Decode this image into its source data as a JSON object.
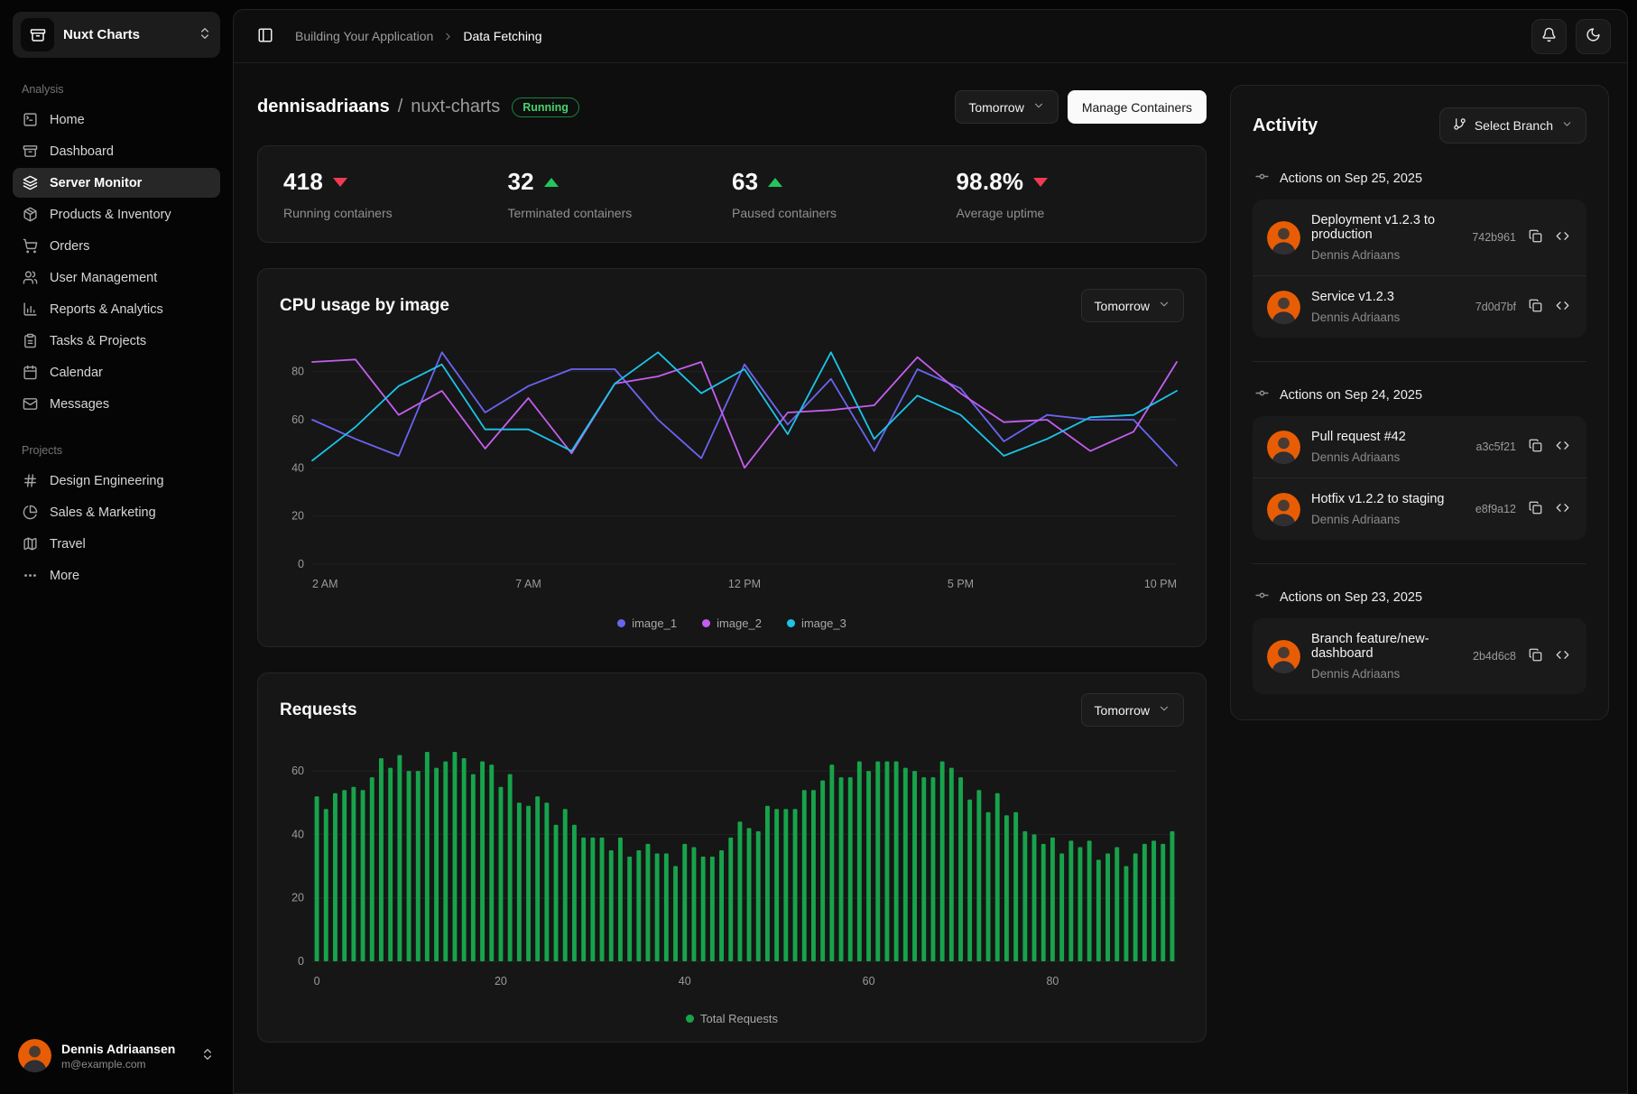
{
  "sidebar": {
    "team": {
      "name": "Nuxt Charts"
    },
    "sections": [
      {
        "label": "Analysis",
        "items": [
          {
            "label": "Home",
            "icon": "terminal-square",
            "active": false
          },
          {
            "label": "Dashboard",
            "icon": "archive",
            "active": false
          },
          {
            "label": "Server Monitor",
            "icon": "layers",
            "active": true
          },
          {
            "label": "Products & Inventory",
            "icon": "package",
            "active": false
          },
          {
            "label": "Orders",
            "icon": "shopping-cart",
            "active": false
          },
          {
            "label": "User Management",
            "icon": "users",
            "active": false
          },
          {
            "label": "Reports & Analytics",
            "icon": "bar-chart",
            "active": false
          },
          {
            "label": "Tasks & Projects",
            "icon": "clipboard",
            "active": false
          },
          {
            "label": "Calendar",
            "icon": "calendar",
            "active": false
          },
          {
            "label": "Messages",
            "icon": "mail",
            "active": false
          }
        ]
      },
      {
        "label": "Projects",
        "items": [
          {
            "label": "Design Engineering",
            "icon": "hash",
            "active": false
          },
          {
            "label": "Sales & Marketing",
            "icon": "pie-chart",
            "active": false
          },
          {
            "label": "Travel",
            "icon": "map",
            "active": false
          },
          {
            "label": "More",
            "icon": "ellipsis",
            "active": false
          }
        ]
      }
    ],
    "user": {
      "name": "Dennis Adriaansen",
      "email": "m@example.com"
    }
  },
  "topbar": {
    "breadcrumb": [
      "Building Your Application",
      "Data Fetching"
    ]
  },
  "header": {
    "owner": "dennisadriaans",
    "separator": "/",
    "repo": "nuxt-charts",
    "status": "Running",
    "period_label": "Tomorrow",
    "manage_label": "Manage Containers"
  },
  "stats": [
    {
      "value": "418",
      "trend": "down",
      "label": "Running containers"
    },
    {
      "value": "32",
      "trend": "up",
      "label": "Terminated containers"
    },
    {
      "value": "63",
      "trend": "up",
      "label": "Paused containers"
    },
    {
      "value": "98.8%",
      "trend": "down",
      "label": "Average uptime"
    }
  ],
  "chart_data": [
    {
      "type": "line",
      "title": "CPU usage by image",
      "period": "Tomorrow",
      "x_tick_labels": [
        "2 AM",
        "7 AM",
        "12 PM",
        "5 PM",
        "10 PM"
      ],
      "x_tick_positions": [
        0,
        5,
        10,
        15,
        20
      ],
      "y_ticks": [
        0,
        20,
        40,
        60,
        80
      ],
      "ylim": [
        0,
        90
      ],
      "grid_color": "#232323",
      "series": [
        {
          "name": "image_1",
          "color": "#6a64f1",
          "values": [
            60,
            52,
            45,
            88,
            63,
            74,
            81,
            81,
            60,
            44,
            83,
            58,
            77,
            47,
            81,
            73,
            51,
            62,
            60,
            60,
            41
          ]
        },
        {
          "name": "image_2",
          "color": "#c45ef0",
          "values": [
            84,
            85,
            62,
            72,
            48,
            69,
            46,
            75,
            78,
            84,
            40,
            63,
            64,
            66,
            86,
            71,
            59,
            60,
            47,
            55,
            84
          ]
        },
        {
          "name": "image_3",
          "color": "#1cc4e8",
          "values": [
            43,
            57,
            74,
            83,
            56,
            56,
            47,
            75,
            88,
            71,
            81,
            54,
            88,
            52,
            70,
            62,
            45,
            52,
            61,
            62,
            72
          ]
        }
      ]
    },
    {
      "type": "bar",
      "title": "Requests",
      "period": "Tomorrow",
      "series_name": "Total Requests",
      "color": "#17a34b",
      "x_tick_labels": [
        "0",
        "20",
        "40",
        "60",
        "80"
      ],
      "x_tick_positions": [
        0,
        20,
        40,
        60,
        80
      ],
      "y_ticks": [
        0,
        20,
        40,
        60
      ],
      "ylim": [
        0,
        66
      ],
      "grid_color": "#232323",
      "values": [
        52,
        48,
        53,
        54,
        55,
        54,
        58,
        64,
        61,
        65,
        60,
        60,
        66,
        61,
        63,
        66,
        64,
        59,
        63,
        62,
        55,
        59,
        50,
        49,
        52,
        50,
        43,
        48,
        43,
        39,
        39,
        39,
        35,
        39,
        33,
        35,
        37,
        34,
        34,
        30,
        37,
        36,
        33,
        33,
        35,
        39,
        44,
        42,
        41,
        49,
        48,
        48,
        48,
        54,
        54,
        57,
        62,
        58,
        58,
        63,
        60,
        63,
        63,
        63,
        61,
        60,
        58,
        58,
        63,
        61,
        58,
        51,
        54,
        47,
        53,
        46,
        47,
        41,
        40,
        37,
        39,
        34,
        38,
        36,
        38,
        32,
        34,
        36,
        30,
        34,
        37,
        38,
        37,
        41
      ]
    }
  ],
  "activity": {
    "title": "Activity",
    "branch_button": "Select Branch",
    "groups": [
      {
        "date_label": "Actions on Sep 25, 2025",
        "items": [
          {
            "title": "Deployment v1.2.3 to production",
            "author": "Dennis Adriaans",
            "hash": "742b961"
          },
          {
            "title": "Service v1.2.3",
            "author": "Dennis Adriaans",
            "hash": "7d0d7bf"
          }
        ]
      },
      {
        "date_label": "Actions on Sep 24, 2025",
        "items": [
          {
            "title": "Pull request #42",
            "author": "Dennis Adriaans",
            "hash": "a3c5f21"
          },
          {
            "title": "Hotfix v1.2.2 to staging",
            "author": "Dennis Adriaans",
            "hash": "e8f9a12"
          }
        ]
      },
      {
        "date_label": "Actions on Sep 23, 2025",
        "items": [
          {
            "title": "Branch feature/new-dashboard",
            "author": "Dennis Adriaans",
            "hash": "2b4d6c8"
          }
        ]
      }
    ]
  }
}
